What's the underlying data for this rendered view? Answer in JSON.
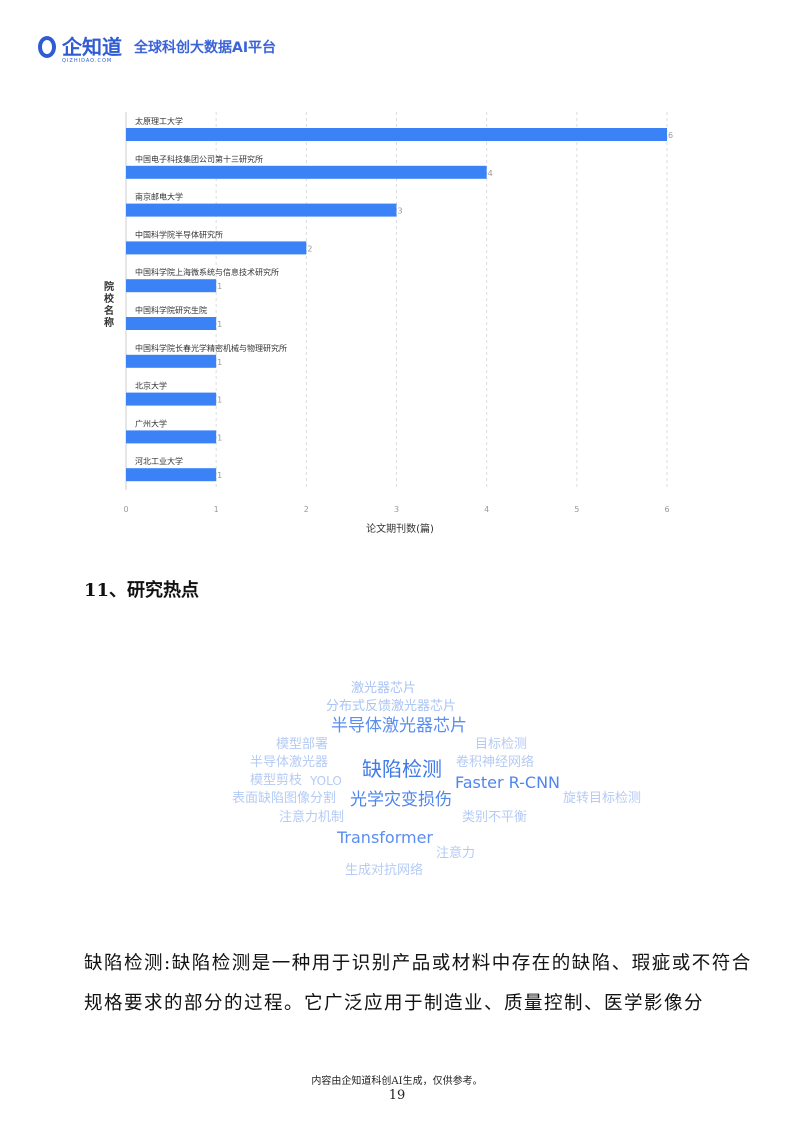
{
  "header": {
    "logo_name": "企知道",
    "logo_sub": "QIZHIDAO.COM",
    "slogan": "全球科创大数据AI平台"
  },
  "chart_data": {
    "type": "bar",
    "orientation": "horizontal",
    "ylabel": "院校名称",
    "xlabel": "论文期刊数(篇)",
    "xlim": [
      0,
      6
    ],
    "xticks": [
      "0",
      "1",
      "2",
      "3",
      "4",
      "5",
      "6"
    ],
    "color": "#3b82f6",
    "categories": [
      "太原理工大学",
      "中国电子科技集团公司第十三研究所",
      "南京邮电大学",
      "中国科学院半导体研究所",
      "中国科学院上海微系统与信息技术研究所",
      "中国科学院研究生院",
      "中国科学院长春光学精密机械与物理研究所",
      "北京大学",
      "广州大学",
      "河北工业大学"
    ],
    "values": [
      6,
      4,
      3,
      2,
      1,
      1,
      1,
      1,
      1,
      1
    ],
    "data_labels": [
      "6",
      "4",
      "3",
      "2",
      "1",
      "1",
      "1",
      "1",
      "1",
      "1"
    ]
  },
  "section": {
    "title": "11、研究热点"
  },
  "word_cloud": [
    {
      "text": "激光器芯片",
      "size": 13,
      "color": "#a9c4f5"
    },
    {
      "text": "分布式反馈激光器芯片",
      "size": 13,
      "color": "#a9c4f5"
    },
    {
      "text": "半导体激光器芯片",
      "size": 17,
      "color": "#5a8ef0"
    },
    {
      "text": "模型部署",
      "size": 13,
      "color": "#b4cbf5"
    },
    {
      "text": "目标检测",
      "size": 13,
      "color": "#b4cbf5"
    },
    {
      "text": "半导体激光器",
      "size": 13,
      "color": "#b4cbf5"
    },
    {
      "text": "卷积神经网络",
      "size": 13,
      "color": "#b4cbf5"
    },
    {
      "text": "缺陷检测",
      "size": 20,
      "color": "#3f7ae8"
    },
    {
      "text": "模型剪枝",
      "size": 13,
      "color": "#b4cbf5"
    },
    {
      "text": "YOLO",
      "size": 12,
      "color": "#b4cbf5"
    },
    {
      "text": "Faster R-CNN",
      "size": 16,
      "color": "#4f86ee"
    },
    {
      "text": "表面缺陷图像分割",
      "size": 13,
      "color": "#b4cbf5"
    },
    {
      "text": "光学灾变损伤",
      "size": 17,
      "color": "#4f86ee"
    },
    {
      "text": "旋转目标检测",
      "size": 13,
      "color": "#b4cbf5"
    },
    {
      "text": "注意力机制",
      "size": 13,
      "color": "#b4cbf5"
    },
    {
      "text": "类别不平衡",
      "size": 13,
      "color": "#b4cbf5"
    },
    {
      "text": "Transformer",
      "size": 16,
      "color": "#5a8ef0"
    },
    {
      "text": "注意力",
      "size": 13,
      "color": "#b4cbf5"
    },
    {
      "text": "生成对抗网络",
      "size": 13,
      "color": "#b4cbf5"
    }
  ],
  "paragraph": "缺陷检测:缺陷检测是一种用于识别产品或材料中存在的缺陷、瑕疵或不符合规格要求的部分的过程。它广泛应用于制造业、质量控制、医学影像分",
  "footer": {
    "note": "内容由企知道科创AI生成，仅供参考。",
    "page": "19"
  }
}
